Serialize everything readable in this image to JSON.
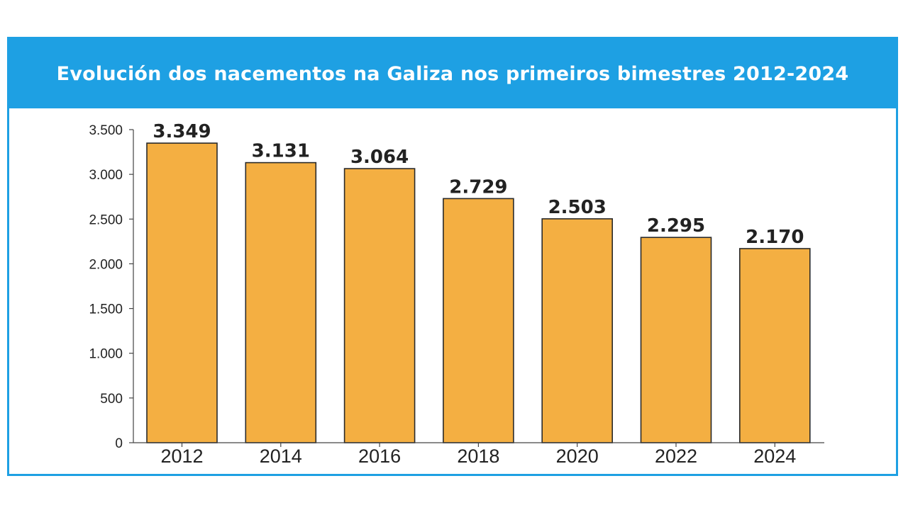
{
  "chart_data": {
    "type": "bar",
    "title": "Evolución dos nacementos na Galiza nos primeiros bimestres 2012-2024",
    "categories": [
      "2012",
      "2014",
      "2016",
      "2018",
      "2020",
      "2022",
      "2024"
    ],
    "values": [
      3349,
      3131,
      3064,
      2729,
      2503,
      2295,
      2170
    ],
    "data_labels": [
      "3.349",
      "3.131",
      "3.064",
      "2.729",
      "2.503",
      "2.295",
      "2.170"
    ],
    "y_ticks": [
      0,
      500,
      1000,
      1500,
      2000,
      2500,
      3000,
      3500
    ],
    "y_tick_labels": [
      "0",
      "500",
      "1.000",
      "1.500",
      "2.000",
      "2.500",
      "3.000",
      "3.500"
    ],
    "ylim": [
      0,
      3500
    ],
    "xlabel": "",
    "ylabel": "",
    "grid": false,
    "legend": "none",
    "colors": {
      "bar": "#f4af42",
      "bar_edge": "#2a2a2a",
      "header": "#1ea0e3",
      "axis": "#444444"
    }
  }
}
